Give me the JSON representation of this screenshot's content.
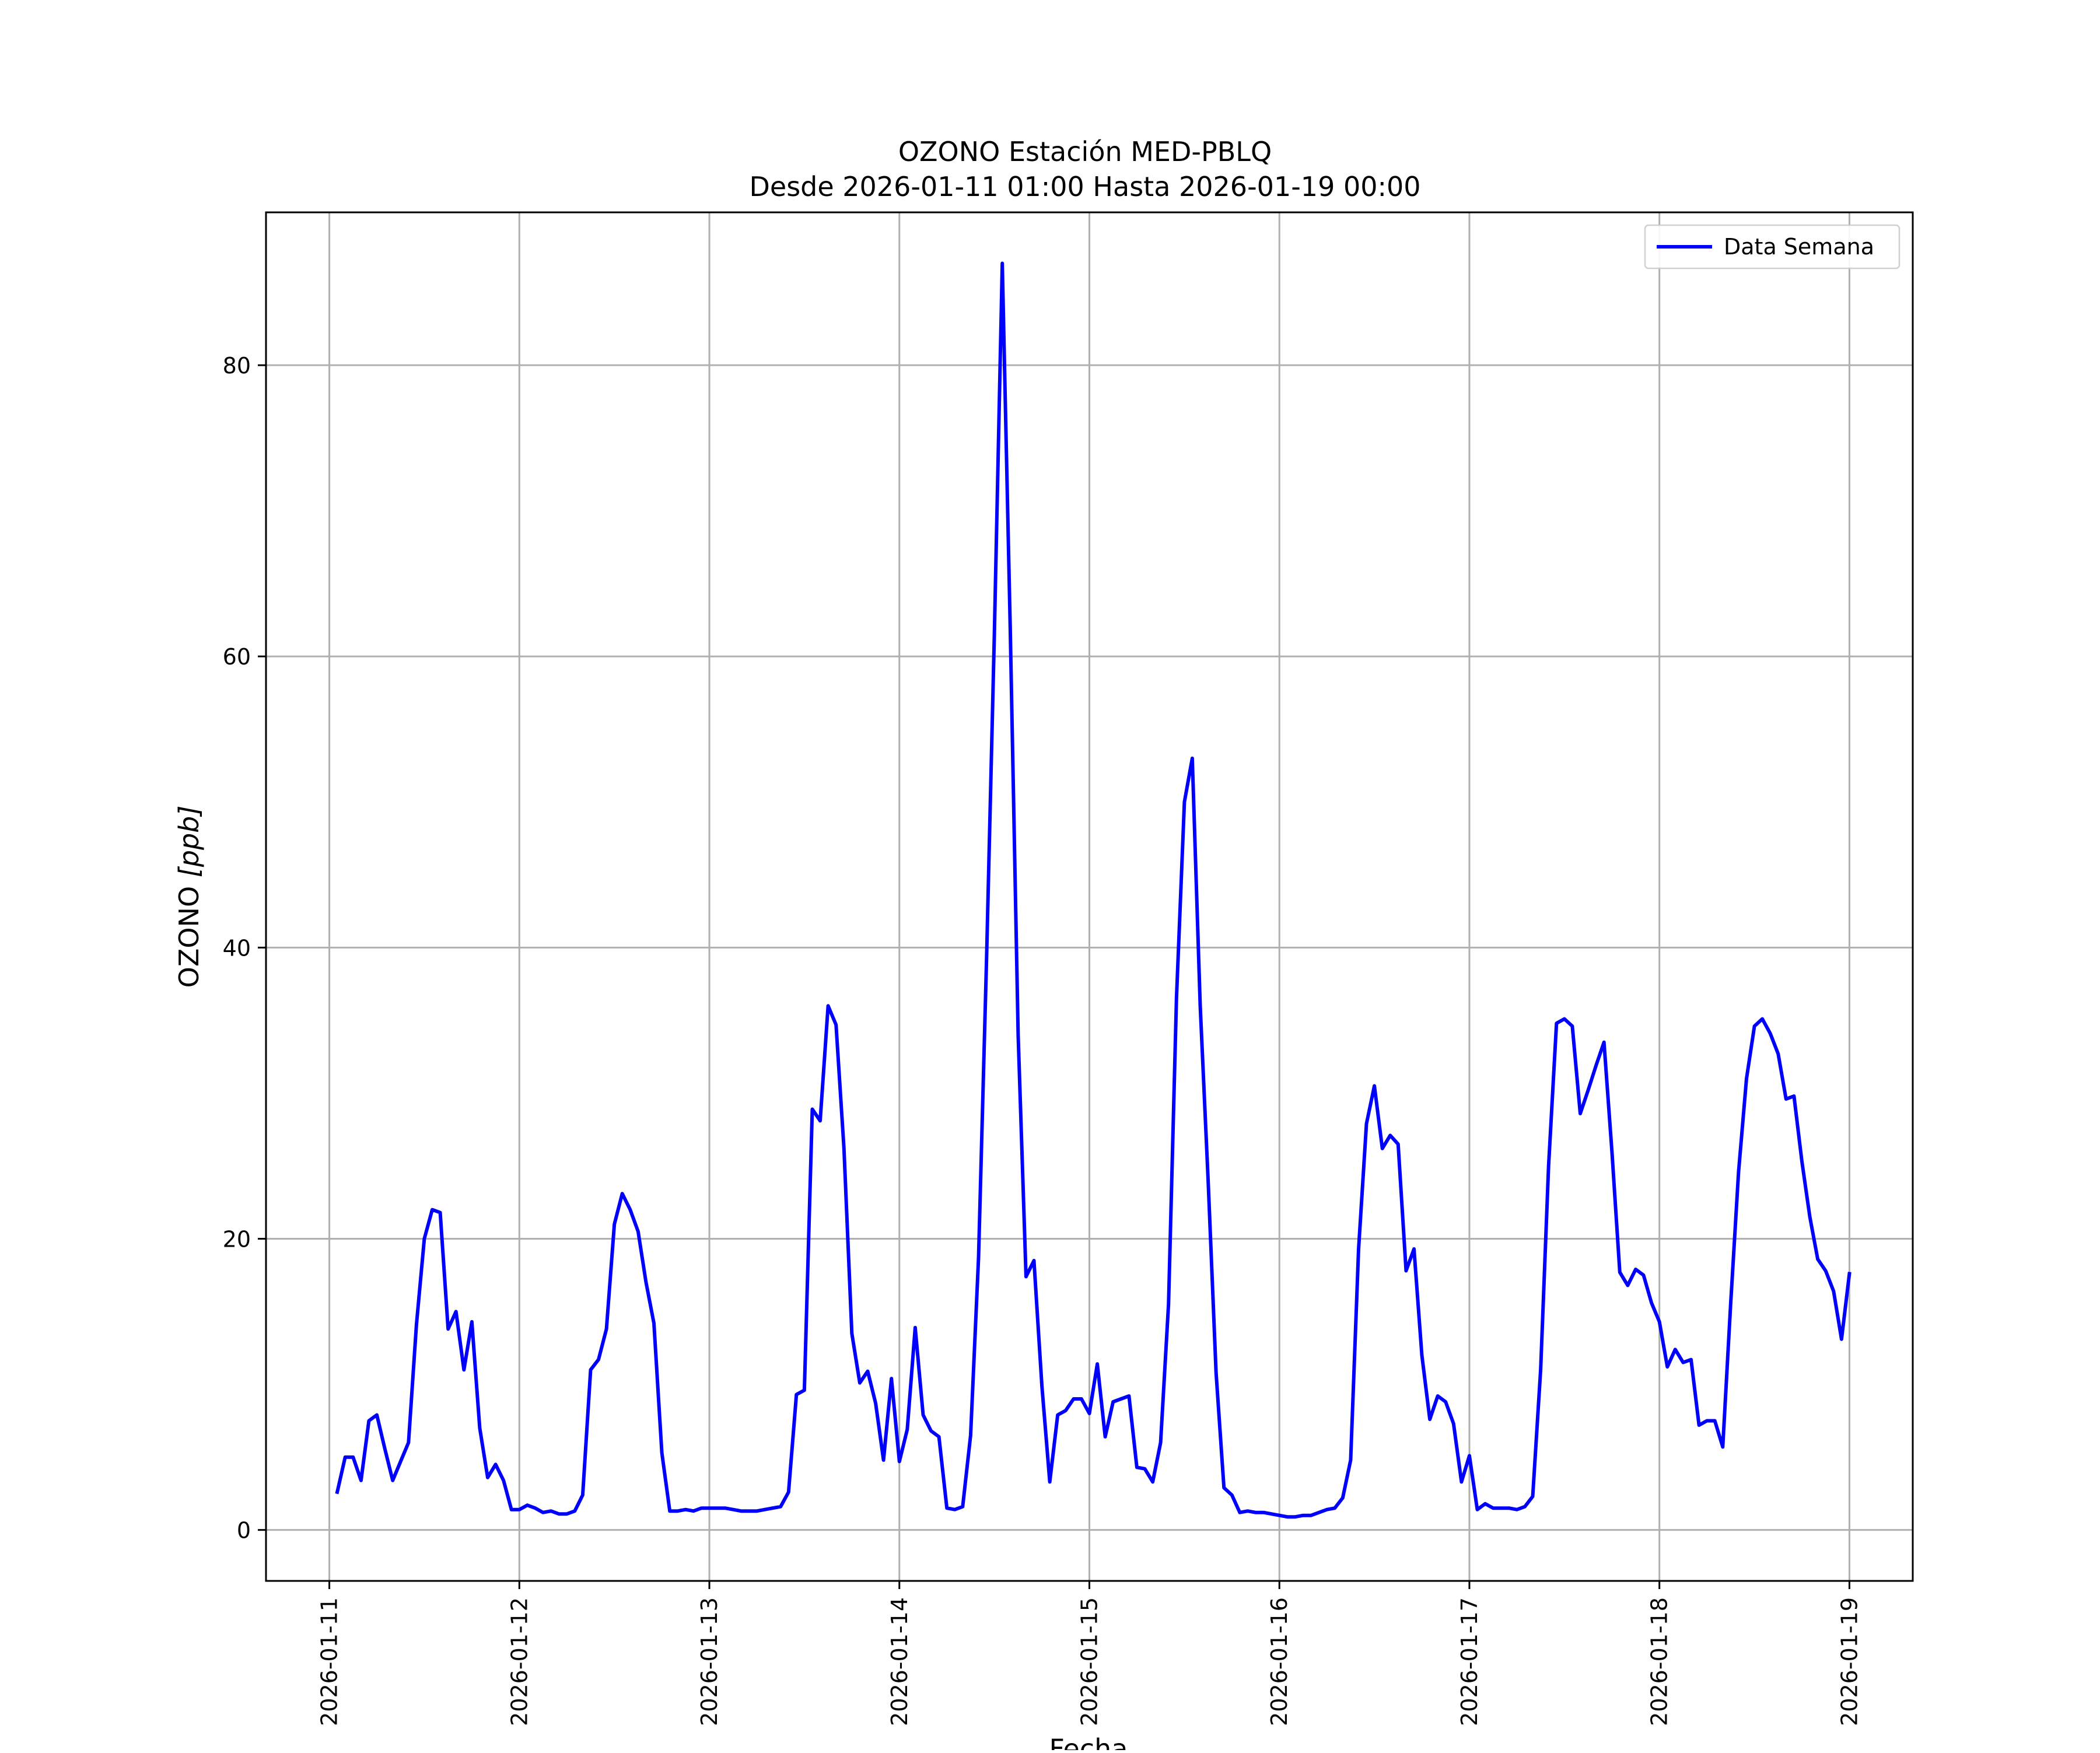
{
  "chart_data": {
    "type": "line",
    "title": "OZONO Estación MED-PBLQ",
    "subtitle": "Desde 2026-01-11 01:00 Hasta 2026-01-19 00:00",
    "xlabel": "Fecha",
    "ylabel": "OZONO [ppb]",
    "ylabel_main": "OZONO ",
    "ylabel_unit": "[ppb]",
    "xlim": [
      "2026-01-10T16:00",
      "2026-01-19T08:00"
    ],
    "ylim": [
      -3.5,
      90.5
    ],
    "x_ticks": [
      "2026-01-11",
      "2026-01-12",
      "2026-01-13",
      "2026-01-14",
      "2026-01-15",
      "2026-01-16",
      "2026-01-17",
      "2026-01-18",
      "2026-01-19"
    ],
    "y_ticks": [
      0,
      20,
      40,
      60,
      80
    ],
    "y_tick_labels": [
      "0",
      "20",
      "40",
      "60",
      "80"
    ],
    "grid": true,
    "legend_position": "top-right",
    "series": [
      {
        "name": "Data Semana",
        "color": "#0000ff",
        "x": [
          "2026-01-11T01:00",
          "2026-01-11T02:00",
          "2026-01-11T03:00",
          "2026-01-11T04:00",
          "2026-01-11T05:00",
          "2026-01-11T06:00",
          "2026-01-11T07:00",
          "2026-01-11T08:00",
          "2026-01-11T09:00",
          "2026-01-11T10:00",
          "2026-01-11T11:00",
          "2026-01-11T12:00",
          "2026-01-11T13:00",
          "2026-01-11T14:00",
          "2026-01-11T15:00",
          "2026-01-11T16:00",
          "2026-01-11T17:00",
          "2026-01-11T18:00",
          "2026-01-11T19:00",
          "2026-01-11T20:00",
          "2026-01-11T21:00",
          "2026-01-11T22:00",
          "2026-01-11T23:00",
          "2026-01-12T00:00",
          "2026-01-12T01:00",
          "2026-01-12T02:00",
          "2026-01-12T03:00",
          "2026-01-12T04:00",
          "2026-01-12T05:00",
          "2026-01-12T06:00",
          "2026-01-12T07:00",
          "2026-01-12T08:00",
          "2026-01-12T09:00",
          "2026-01-12T10:00",
          "2026-01-12T11:00",
          "2026-01-12T12:00",
          "2026-01-12T13:00",
          "2026-01-12T14:00",
          "2026-01-12T15:00",
          "2026-01-12T16:00",
          "2026-01-12T17:00",
          "2026-01-12T18:00",
          "2026-01-12T19:00",
          "2026-01-12T20:00",
          "2026-01-12T21:00",
          "2026-01-12T22:00",
          "2026-01-12T23:00",
          "2026-01-13T00:00",
          "2026-01-13T01:00",
          "2026-01-13T02:00",
          "2026-01-13T03:00",
          "2026-01-13T04:00",
          "2026-01-13T05:00",
          "2026-01-13T06:00",
          "2026-01-13T07:00",
          "2026-01-13T08:00",
          "2026-01-13T09:00",
          "2026-01-13T10:00",
          "2026-01-13T11:00",
          "2026-01-13T12:00",
          "2026-01-13T13:00",
          "2026-01-13T14:00",
          "2026-01-13T15:00",
          "2026-01-13T16:00",
          "2026-01-13T17:00",
          "2026-01-13T18:00",
          "2026-01-13T19:00",
          "2026-01-13T20:00",
          "2026-01-13T21:00",
          "2026-01-13T22:00",
          "2026-01-13T23:00",
          "2026-01-14T00:00",
          "2026-01-14T01:00",
          "2026-01-14T02:00",
          "2026-01-14T03:00",
          "2026-01-14T04:00",
          "2026-01-14T05:00",
          "2026-01-14T06:00",
          "2026-01-14T07:00",
          "2026-01-14T08:00",
          "2026-01-14T09:00",
          "2026-01-14T10:00",
          "2026-01-14T11:00",
          "2026-01-14T12:00",
          "2026-01-14T13:00",
          "2026-01-14T14:00",
          "2026-01-14T15:00",
          "2026-01-14T16:00",
          "2026-01-14T17:00",
          "2026-01-14T18:00",
          "2026-01-14T19:00",
          "2026-01-14T20:00",
          "2026-01-14T21:00",
          "2026-01-14T22:00",
          "2026-01-14T23:00",
          "2026-01-15T00:00",
          "2026-01-15T01:00",
          "2026-01-15T02:00",
          "2026-01-15T03:00",
          "2026-01-15T04:00",
          "2026-01-15T05:00",
          "2026-01-15T06:00",
          "2026-01-15T07:00",
          "2026-01-15T08:00",
          "2026-01-15T09:00",
          "2026-01-15T10:00",
          "2026-01-15T11:00",
          "2026-01-15T12:00",
          "2026-01-15T13:00",
          "2026-01-15T14:00",
          "2026-01-15T15:00",
          "2026-01-15T16:00",
          "2026-01-15T17:00",
          "2026-01-15T18:00",
          "2026-01-15T19:00",
          "2026-01-15T20:00",
          "2026-01-15T21:00",
          "2026-01-15T22:00",
          "2026-01-15T23:00",
          "2026-01-16T00:00",
          "2026-01-16T01:00",
          "2026-01-16T02:00",
          "2026-01-16T03:00",
          "2026-01-16T04:00",
          "2026-01-16T05:00",
          "2026-01-16T06:00",
          "2026-01-16T07:00",
          "2026-01-16T08:00",
          "2026-01-16T09:00",
          "2026-01-16T10:00",
          "2026-01-16T11:00",
          "2026-01-16T12:00",
          "2026-01-16T13:00",
          "2026-01-16T14:00",
          "2026-01-16T15:00",
          "2026-01-16T16:00",
          "2026-01-16T17:00",
          "2026-01-16T18:00",
          "2026-01-16T19:00",
          "2026-01-16T20:00",
          "2026-01-16T21:00",
          "2026-01-16T22:00",
          "2026-01-16T23:00",
          "2026-01-17T00:00",
          "2026-01-17T01:00",
          "2026-01-17T02:00",
          "2026-01-17T03:00",
          "2026-01-17T04:00",
          "2026-01-17T05:00",
          "2026-01-17T06:00",
          "2026-01-17T07:00",
          "2026-01-17T08:00",
          "2026-01-17T09:00",
          "2026-01-17T10:00",
          "2026-01-17T11:00",
          "2026-01-17T12:00",
          "2026-01-17T13:00",
          "2026-01-17T14:00",
          "2026-01-17T15:00",
          "2026-01-17T16:00",
          "2026-01-17T17:00",
          "2026-01-17T18:00",
          "2026-01-17T19:00",
          "2026-01-17T20:00",
          "2026-01-17T21:00",
          "2026-01-17T22:00",
          "2026-01-17T23:00",
          "2026-01-18T00:00",
          "2026-01-18T01:00",
          "2026-01-18T02:00",
          "2026-01-18T03:00",
          "2026-01-18T04:00",
          "2026-01-18T05:00",
          "2026-01-18T06:00",
          "2026-01-18T07:00",
          "2026-01-18T08:00",
          "2026-01-18T09:00",
          "2026-01-18T10:00",
          "2026-01-18T11:00",
          "2026-01-18T12:00",
          "2026-01-18T13:00",
          "2026-01-18T14:00",
          "2026-01-18T15:00",
          "2026-01-18T16:00",
          "2026-01-18T17:00",
          "2026-01-18T18:00",
          "2026-01-18T19:00",
          "2026-01-18T20:00",
          "2026-01-18T21:00",
          "2026-01-18T22:00",
          "2026-01-18T23:00",
          "2026-01-19T00:00"
        ],
        "values": [
          2.6,
          5.0,
          5.0,
          3.4,
          7.5,
          7.9,
          5.6,
          3.4,
          4.7,
          6.0,
          14.1,
          20.0,
          22.0,
          21.8,
          13.8,
          15.0,
          11.0,
          14.3,
          7.0,
          3.6,
          4.5,
          3.4,
          1.4,
          1.4,
          1.7,
          1.5,
          1.2,
          1.3,
          1.1,
          1.1,
          1.3,
          2.4,
          11.0,
          11.7,
          13.8,
          21.0,
          23.1,
          22.0,
          20.5,
          17.0,
          14.2,
          5.3,
          1.3,
          1.3,
          1.4,
          1.3,
          1.5,
          1.5,
          1.5,
          1.5,
          1.4,
          1.3,
          1.3,
          1.3,
          1.4,
          1.5,
          1.6,
          2.6,
          9.3,
          9.6,
          28.9,
          28.1,
          36.0,
          34.7,
          26.2,
          13.5,
          10.1,
          10.9,
          8.7,
          4.8,
          10.4,
          4.7,
          6.9,
          13.9,
          7.9,
          6.8,
          6.4,
          1.5,
          1.4,
          1.6,
          6.5,
          18.7,
          39.0,
          61.5,
          87.0,
          62.0,
          34.0,
          17.4,
          18.5,
          9.9,
          3.3,
          7.9,
          8.2,
          9.0,
          9.0,
          8.0,
          11.4,
          6.4,
          8.8,
          9.0,
          9.2,
          4.3,
          4.2,
          3.3,
          6.0,
          15.5,
          36.5,
          50.0,
          53.0,
          36.0,
          24.0,
          10.8,
          2.9,
          2.4,
          1.2,
          1.3,
          1.2,
          1.2,
          1.1,
          1.0,
          0.9,
          0.9,
          1.0,
          1.0,
          1.2,
          1.4,
          1.5,
          2.2,
          4.8,
          19.3,
          27.9,
          30.5,
          26.2,
          27.1,
          26.5,
          17.8,
          19.3,
          12.0,
          7.6,
          9.2,
          8.8,
          7.3,
          3.3,
          5.1,
          1.4,
          1.8,
          1.5,
          1.5,
          1.5,
          1.4,
          1.6,
          2.3,
          11.0,
          25.0,
          34.8,
          35.1,
          34.6,
          28.6,
          30.2,
          31.9,
          33.5,
          26.0,
          17.7,
          16.8,
          17.9,
          17.5,
          15.6,
          14.3,
          11.2,
          12.4,
          11.5,
          11.7,
          7.2,
          7.5,
          7.5,
          5.7,
          15.5,
          24.6,
          31.0,
          34.6,
          35.1,
          34.1,
          32.7,
          29.6,
          29.8,
          25.3,
          21.5,
          18.6,
          17.8,
          16.4,
          13.1,
          17.6
        ]
      }
    ]
  }
}
